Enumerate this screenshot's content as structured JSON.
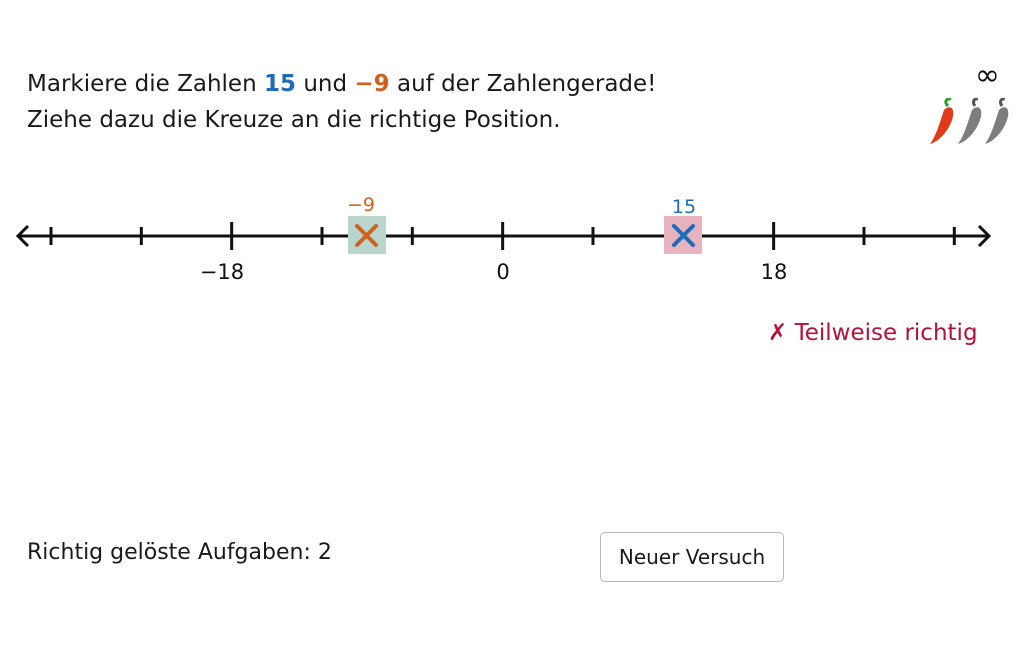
{
  "instruction": {
    "line1_prefix": "Markiere die Zahlen",
    "number_a": "15",
    "connector": "und",
    "number_b": "−9",
    "line1_suffix": "auf der Zahlengerade!",
    "line2": "Ziehe dazu die Kreuze an die richtige Position."
  },
  "attempts_remaining": "∞",
  "difficulty": {
    "level": 1,
    "max": 3,
    "icon": "chili-pepper-icon"
  },
  "number_line": {
    "labels": {
      "left": "−18",
      "center": "0",
      "right": "18"
    },
    "marker_a": {
      "label": "15",
      "value": 15,
      "status": "incorrect"
    },
    "marker_b": {
      "label": "−9",
      "value": -9,
      "status": "correct"
    }
  },
  "feedback": {
    "icon": "✗",
    "text": "Teilweise richtig"
  },
  "score": {
    "text": "Richtig gelöste Aufgaben: 2"
  },
  "retry_button": {
    "label": "Neuer Versuch"
  },
  "colors": {
    "blue": "#1e6bb8",
    "orange": "#d2601f",
    "correct_bg": "#b9d5cd",
    "incorrect_bg": "#e8b3be",
    "feedback": "#b3123a"
  }
}
